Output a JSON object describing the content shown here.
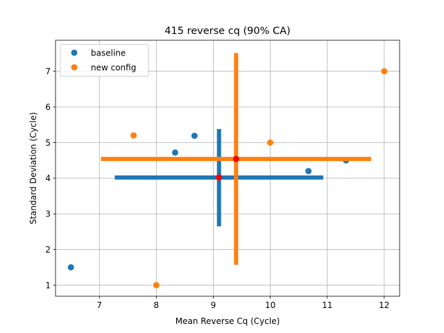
{
  "chart_data": {
    "type": "scatter",
    "title": "415 reverse cq (90% CA)",
    "xlabel": "Mean Reverse Cq (Cycle)",
    "ylabel": "Standard Deviation (Cycle)",
    "xlim": [
      6.23,
      12.27
    ],
    "ylim": [
      0.69,
      7.87
    ],
    "xticks": [
      7,
      8,
      9,
      10,
      11,
      12
    ],
    "yticks": [
      1,
      2,
      3,
      4,
      5,
      6,
      7
    ],
    "grid": true,
    "legend_position": "top-left",
    "series": [
      {
        "name": "baseline",
        "color": "#1f77b4",
        "points": [
          {
            "x": 6.5,
            "y": 1.5
          },
          {
            "x": 8.33,
            "y": 4.72
          },
          {
            "x": 8.67,
            "y": 5.19
          },
          {
            "x": 10.67,
            "y": 4.2
          },
          {
            "x": 11.33,
            "y": 4.5
          }
        ],
        "interval": {
          "x_center": 9.1,
          "x_range": [
            7.27,
            10.93
          ],
          "y_center": 4.02,
          "y_range": [
            2.65,
            5.38
          ]
        }
      },
      {
        "name": "new config",
        "color": "#ff7f0e",
        "points": [
          {
            "x": 7.6,
            "y": 5.2
          },
          {
            "x": 8.0,
            "y": 1.0
          },
          {
            "x": 10.0,
            "y": 5.0
          },
          {
            "x": 12.0,
            "y": 7.0
          }
        ],
        "interval": {
          "x_center": 9.4,
          "x_range": [
            7.03,
            11.77
          ],
          "y_center": 4.54,
          "y_range": [
            1.57,
            7.51
          ]
        }
      }
    ],
    "center_marker_color": "#ff0000"
  }
}
